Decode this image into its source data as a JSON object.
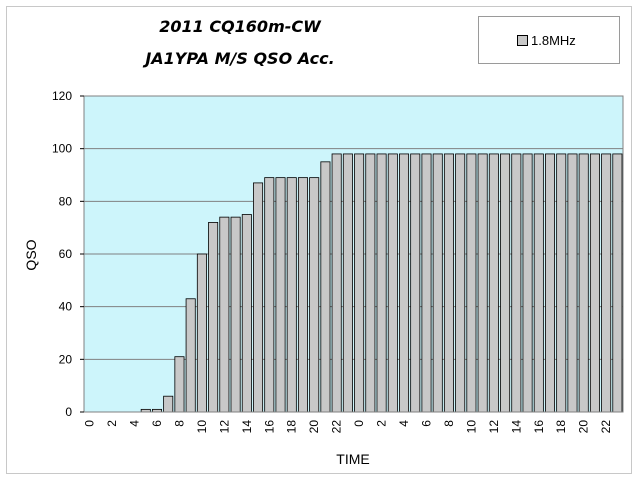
{
  "chart_data": {
    "type": "bar",
    "title_line1": "2011 CQ160m-CW",
    "title_line2": "JA1YPA M/S  QSO Acc.",
    "xlabel": "TIME",
    "ylabel": "QSO",
    "ylim": [
      0,
      120
    ],
    "yticks": [
      0,
      20,
      40,
      60,
      80,
      100,
      120
    ],
    "grid": true,
    "legend_position": "top-right",
    "categories": [
      "0",
      "1",
      "2",
      "3",
      "4",
      "5",
      "6",
      "7",
      "8",
      "9",
      "10",
      "11",
      "12",
      "13",
      "14",
      "15",
      "16",
      "17",
      "18",
      "19",
      "20",
      "21",
      "22",
      "23",
      "0",
      "1",
      "2",
      "3",
      "4",
      "5",
      "6",
      "7",
      "8",
      "9",
      "10",
      "11",
      "12",
      "13",
      "14",
      "15",
      "16",
      "17",
      "18",
      "19",
      "20",
      "21",
      "22",
      "23"
    ],
    "tick_labels": [
      "0",
      "2",
      "4",
      "6",
      "8",
      "10",
      "12",
      "14",
      "16",
      "18",
      "20",
      "22",
      "0",
      "2",
      "4",
      "6",
      "8",
      "10",
      "12",
      "14",
      "16",
      "18",
      "20",
      "22"
    ],
    "series": [
      {
        "name": "1.8MHz",
        "values": [
          0,
          0,
          0,
          0,
          0,
          1,
          1,
          6,
          21,
          43,
          60,
          72,
          74,
          74,
          75,
          87,
          89,
          89,
          89,
          89,
          89,
          95,
          98,
          98,
          98,
          98,
          98,
          98,
          98,
          98,
          98,
          98,
          98,
          98,
          98,
          98,
          98,
          98,
          98,
          98,
          98,
          98,
          98,
          98,
          98,
          98,
          98,
          98
        ]
      }
    ],
    "colors": {
      "plot_bg": "#cdf5fb",
      "bar_fill": "#c8c8c8",
      "bar_stroke": "#000000",
      "plot_border": "#808080",
      "grid": "#808080"
    }
  }
}
